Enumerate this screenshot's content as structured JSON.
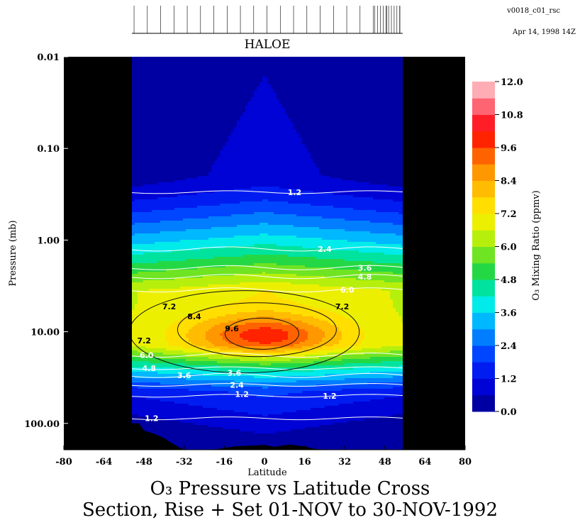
{
  "chart_data": {
    "type": "heatmap",
    "title": "O₃ Pressure vs Latitude Cross",
    "subtitle": "Section, Rise + Set 01-NOV to 30-NOV-1992",
    "instrument": "HALOE",
    "version": "v0018_c01_rsc",
    "date_stamp": "Apr 14, 1998 14Z",
    "xlabel": "Latitude",
    "ylabel": "Pressure (mb)",
    "xlim": [
      -80,
      80
    ],
    "ylim": [
      0.01,
      200
    ],
    "y_scale": "log",
    "y_inverted": true,
    "x_ticks": [
      -80,
      -64,
      -48,
      -32,
      -16,
      0,
      16,
      32,
      48,
      64,
      80
    ],
    "y_ticks": [
      {
        "value": 0.01,
        "label": "0.01"
      },
      {
        "value": 0.1,
        "label": "0.10"
      },
      {
        "value": 1,
        "label": "1.00"
      },
      {
        "value": 10,
        "label": "10.00"
      },
      {
        "value": 100,
        "label": "100.00"
      }
    ],
    "data_lat_range": [
      -52,
      54
    ],
    "colorbar": {
      "label": "O₃ Mixing Ratio (ppmv)",
      "min": 0.0,
      "max": 12.0,
      "ticks": [
        "0.0",
        "1.2",
        "2.4",
        "3.6",
        "4.8",
        "6.0",
        "7.2",
        "8.4",
        "9.6",
        "10.8",
        "12.0"
      ]
    },
    "ozone_peak": {
      "value": 10.0,
      "latitude": 0,
      "pressure": 11
    },
    "contour_labels": [
      {
        "text": "1.2",
        "lat": 12,
        "p": 0.3,
        "color": "#ffffff"
      },
      {
        "text": "2.4",
        "lat": 24,
        "p": 1.25,
        "color": "#ffffff"
      },
      {
        "text": "3.6",
        "lat": 40,
        "p": 2.0,
        "color": "#ffffff"
      },
      {
        "text": "4.8",
        "lat": 40,
        "p": 2.5,
        "color": "#ffffff"
      },
      {
        "text": "6.0",
        "lat": 33,
        "p": 3.5,
        "color": "#ffffff"
      },
      {
        "text": "7.2",
        "lat": -38,
        "p": 5.3,
        "color": "#000000"
      },
      {
        "text": "7.2",
        "lat": 31,
        "p": 5.3,
        "color": "#000000"
      },
      {
        "text": "8.4",
        "lat": -28,
        "p": 6.8,
        "color": "#000000"
      },
      {
        "text": "9.6",
        "lat": -13,
        "p": 9.2,
        "color": "#000000"
      },
      {
        "text": "7.2",
        "lat": -48,
        "p": 12.5,
        "color": "#000000"
      },
      {
        "text": "6.0",
        "lat": -47,
        "p": 18.0,
        "color": "#ffffff"
      },
      {
        "text": "4.8",
        "lat": -46,
        "p": 25.0,
        "color": "#ffffff"
      },
      {
        "text": "3.6",
        "lat": -32,
        "p": 30.0,
        "color": "#ffffff"
      },
      {
        "text": "3.6",
        "lat": -12,
        "p": 28.0,
        "color": "#ffffff"
      },
      {
        "text": "2.4",
        "lat": -11,
        "p": 38.0,
        "color": "#ffffff"
      },
      {
        "text": "1.2",
        "lat": -9,
        "p": 48.0,
        "color": "#ffffff"
      },
      {
        "text": "1.2",
        "lat": 26,
        "p": 50.0,
        "color": "#ffffff"
      },
      {
        "text": "1.2",
        "lat": -45,
        "p": 88.0,
        "color": "#ffffff"
      }
    ]
  }
}
